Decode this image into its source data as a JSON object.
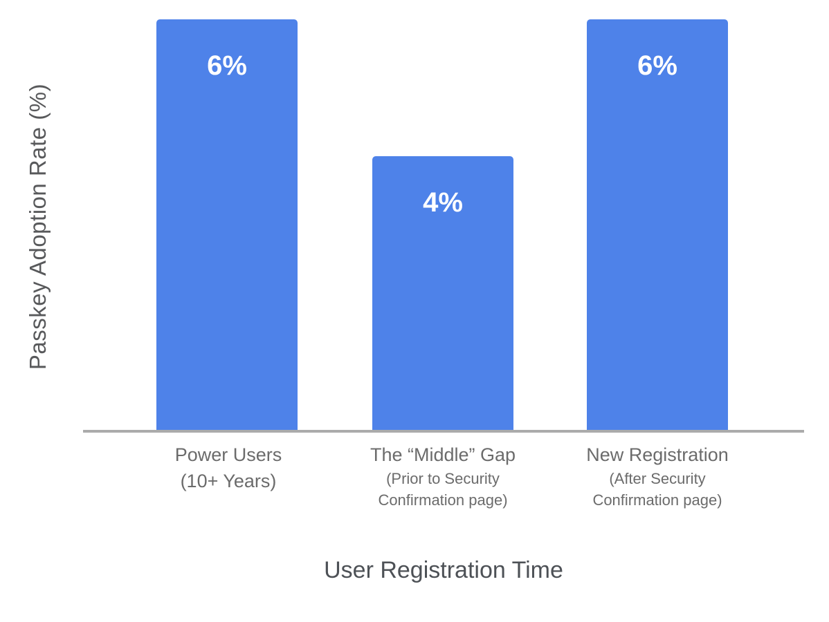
{
  "chart_data": {
    "type": "bar",
    "title": "",
    "xlabel": "User Registration Time",
    "ylabel": "Passkey Adoption Rate (%)",
    "categories": [
      {
        "main_lines": [
          "Power Users",
          "(10+ Years)"
        ],
        "sub_lines": []
      },
      {
        "main_lines": [
          "The “Middle” Gap"
        ],
        "sub_lines": [
          "(Prior to Security",
          "Confirmation page)"
        ]
      },
      {
        "main_lines": [
          "New Registration"
        ],
        "sub_lines": [
          "(After Security",
          "Confirmation page)"
        ]
      }
    ],
    "values": [
      6,
      4,
      6
    ],
    "value_labels": [
      "6%",
      "4%",
      "6%"
    ],
    "ylim": [
      0,
      6
    ],
    "grid": false,
    "legend": false,
    "colors": {
      "bar": "#4e82e9",
      "bar_label": "#ffffff",
      "axis_line": "#ababab",
      "category_text": "#6b6b6b",
      "y_label_text": "#58595b",
      "x_title_text": "#4d5156",
      "background": "#ffffff"
    }
  }
}
